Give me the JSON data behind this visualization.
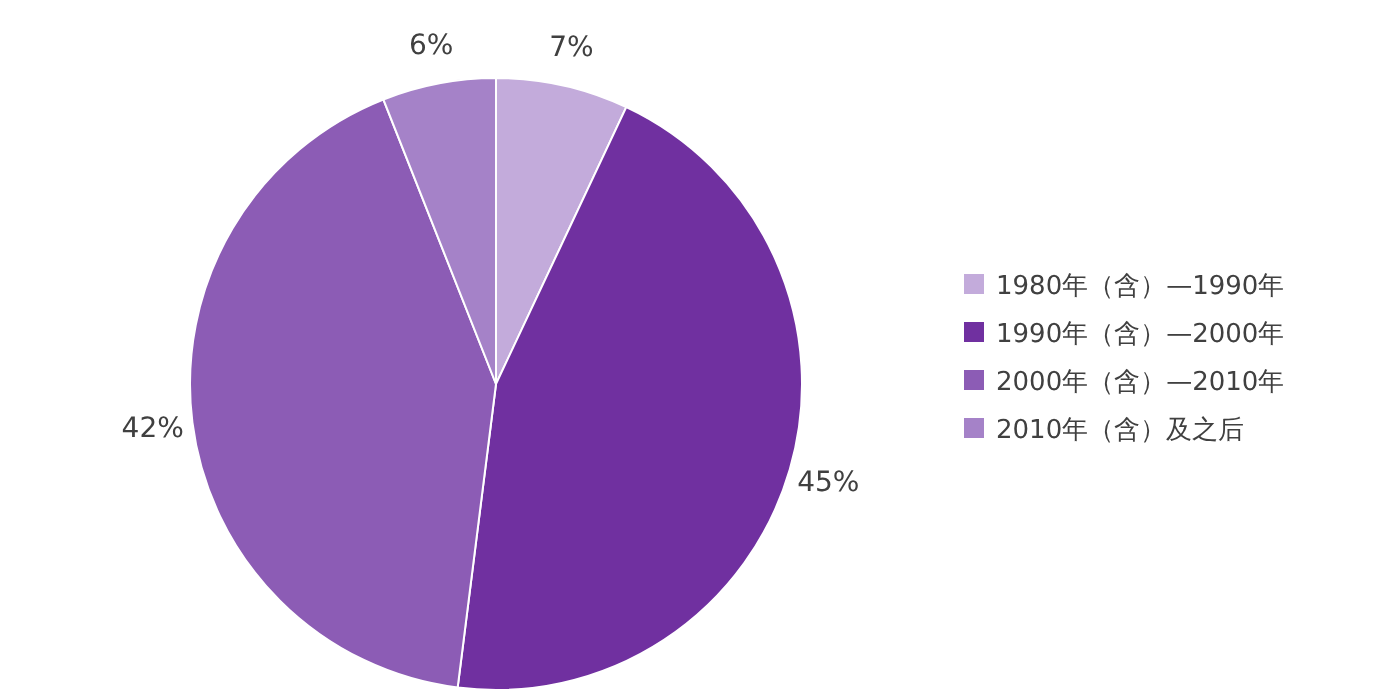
{
  "chart_data": {
    "type": "pie",
    "categories": [
      "1980年（含）—1990年",
      "1990年（含）—2000年",
      "2000年（含）—2010年",
      "2010年（含）及之后"
    ],
    "values": [
      7,
      45,
      42,
      6
    ],
    "colors": [
      "#c3abdb",
      "#7030a0",
      "#8c5cb5",
      "#a582c8"
    ],
    "value_labels": [
      "7%",
      "45%",
      "42%",
      "6%"
    ],
    "legend": "right"
  }
}
